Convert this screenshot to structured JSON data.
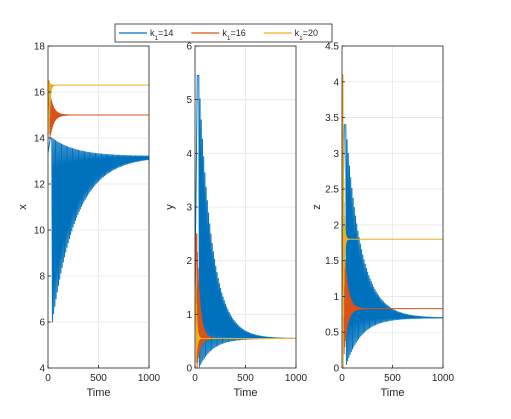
{
  "legend": {
    "placement": "top-center",
    "entries": [
      {
        "base": "k",
        "sub": "1",
        "rest": "=14",
        "color": "#0072BD"
      },
      {
        "base": "k",
        "sub": "1",
        "rest": "=16",
        "color": "#D95319"
      },
      {
        "base": "k",
        "sub": "1",
        "rest": "=20",
        "color": "#EDB120"
      }
    ]
  },
  "chart_data": [
    {
      "type": "line",
      "xlabel": "Time",
      "ylabel": "x",
      "xlim": [
        0,
        1000
      ],
      "ylim": [
        4,
        18
      ],
      "xticks": [
        0,
        500,
        1000
      ],
      "yticks": [
        4,
        6,
        8,
        10,
        12,
        14,
        16,
        18
      ],
      "grid": true,
      "series": [
        {
          "name": "k1=14",
          "color": "#0072BD",
          "steady": 13.2,
          "osc_start": 38,
          "period": 12,
          "peak_high": 14.0,
          "peak_low": 6.0,
          "decay_time": 240
        },
        {
          "name": "k1=16",
          "color": "#D95319",
          "steady": 15.0,
          "osc_start": 18,
          "period": 6,
          "peak_high": 16.0,
          "peak_low": 14.0,
          "decay_time": 35
        },
        {
          "name": "k1=20",
          "color": "#EDB120",
          "steady": 16.3,
          "osc_start": 10,
          "period": 4,
          "peak_high": 16.5,
          "peak_low": 14.2,
          "decay_time": 10
        }
      ]
    },
    {
      "type": "line",
      "xlabel": "Time",
      "ylabel": "y",
      "xlim": [
        0,
        1000
      ],
      "ylim": [
        0,
        6
      ],
      "xticks": [
        0,
        500,
        1000
      ],
      "yticks": [
        0,
        1,
        2,
        3,
        4,
        5,
        6
      ],
      "grid": true,
      "series": [
        {
          "name": "k1=14",
          "color": "#0072BD",
          "steady": 0.55,
          "osc_start": 38,
          "period": 12,
          "peak_high": 5.45,
          "peak_low": 0.02,
          "decay_time": 130
        },
        {
          "name": "k1=16",
          "color": "#D95319",
          "steady": 0.55,
          "osc_start": 18,
          "period": 6,
          "peak_high": 2.5,
          "peak_low": 0.02,
          "decay_time": 30
        },
        {
          "name": "k1=20",
          "color": "#EDB120",
          "steady": 0.55,
          "osc_start": 10,
          "period": 4,
          "peak_high": 1.5,
          "peak_low": 0.1,
          "decay_time": 10
        }
      ]
    },
    {
      "type": "line",
      "xlabel": "Time",
      "ylabel": "z",
      "xlim": [
        0,
        1000
      ],
      "ylim": [
        0,
        4.5
      ],
      "xticks": [
        0,
        500,
        1000
      ],
      "yticks": [
        0,
        0.5,
        1,
        1.5,
        2,
        2.5,
        3,
        3.5,
        4,
        4.5
      ],
      "grid": true,
      "series": [
        {
          "name": "k1=14",
          "color": "#0072BD",
          "steady": 0.7,
          "osc_start": 38,
          "period": 12,
          "peak_high": 3.4,
          "peak_low": 0.05,
          "decay_time": 150
        },
        {
          "name": "k1=16",
          "color": "#D95319",
          "steady": 0.83,
          "osc_start": 18,
          "period": 6,
          "peak_high": 1.8,
          "peak_low": 0.2,
          "decay_time": 35
        },
        {
          "name": "k1=20",
          "color": "#EDB120",
          "steady": 1.8,
          "osc_start": 10,
          "period": 4,
          "peak_high": 4.1,
          "peak_low": 0.0,
          "decay_time": 8
        }
      ]
    }
  ]
}
